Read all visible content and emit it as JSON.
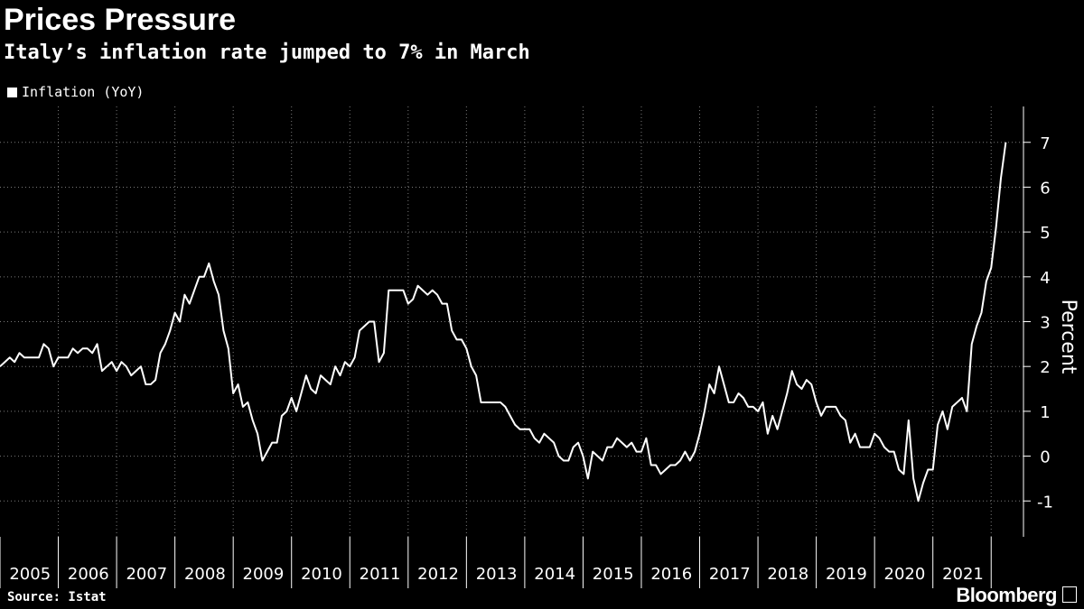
{
  "header": {
    "title": "Prices Pressure",
    "subtitle": "Italy’s inflation rate jumped to 7% in March"
  },
  "footer": {
    "source": "Source: Istat",
    "brand": "Bloomberg"
  },
  "chart_data": {
    "type": "line",
    "ylabel": "Percent",
    "ylim": [
      -1.8,
      7.8
    ],
    "yticks": [
      -1,
      0,
      1,
      2,
      3,
      4,
      5,
      6,
      7
    ],
    "xlim": [
      "2005-01",
      "2022-03"
    ],
    "x_tick_labels": [
      "2005",
      "2006",
      "2007",
      "2008",
      "2009",
      "2010",
      "2011",
      "2012",
      "2013",
      "2014",
      "2015",
      "2016",
      "2017",
      "2018",
      "2019",
      "2020",
      "2021"
    ],
    "grid": true,
    "legend": "top-left",
    "series": [
      {
        "name": "Inflation (YoY)",
        "color": "#ffffff",
        "start": "2005-01",
        "frequency": "monthly",
        "values": [
          2.0,
          2.1,
          2.2,
          2.1,
          2.3,
          2.2,
          2.2,
          2.2,
          2.2,
          2.5,
          2.4,
          2.0,
          2.2,
          2.2,
          2.2,
          2.4,
          2.3,
          2.4,
          2.4,
          2.3,
          2.5,
          1.9,
          2.0,
          2.1,
          1.9,
          2.1,
          2.0,
          1.8,
          1.9,
          2.0,
          1.6,
          1.6,
          1.7,
          2.3,
          2.5,
          2.8,
          3.2,
          3.0,
          3.6,
          3.4,
          3.7,
          4.0,
          4.0,
          4.3,
          3.9,
          3.6,
          2.8,
          2.4,
          1.4,
          1.6,
          1.1,
          1.2,
          0.8,
          0.5,
          -0.1,
          0.1,
          0.3,
          0.3,
          0.9,
          1.0,
          1.3,
          1.0,
          1.4,
          1.8,
          1.5,
          1.4,
          1.8,
          1.7,
          1.6,
          2.0,
          1.8,
          2.1,
          2.0,
          2.2,
          2.8,
          2.9,
          3.0,
          3.0,
          2.1,
          2.3,
          3.7,
          3.7,
          3.7,
          3.7,
          3.4,
          3.5,
          3.8,
          3.7,
          3.6,
          3.7,
          3.6,
          3.4,
          3.4,
          2.8,
          2.6,
          2.6,
          2.4,
          2.0,
          1.8,
          1.2,
          1.2,
          1.2,
          1.2,
          1.2,
          1.1,
          0.9,
          0.7,
          0.6,
          0.6,
          0.6,
          0.4,
          0.3,
          0.5,
          0.4,
          0.3,
          0.0,
          -0.1,
          -0.1,
          0.2,
          0.3,
          0.0,
          -0.5,
          0.1,
          0.0,
          -0.1,
          0.2,
          0.2,
          0.4,
          0.3,
          0.2,
          0.3,
          0.1,
          0.1,
          0.4,
          -0.2,
          -0.2,
          -0.4,
          -0.3,
          -0.2,
          -0.2,
          -0.1,
          0.1,
          -0.1,
          0.1,
          0.5,
          1.0,
          1.6,
          1.4,
          2.0,
          1.6,
          1.2,
          1.2,
          1.4,
          1.3,
          1.1,
          1.1,
          1.0,
          1.2,
          0.5,
          0.9,
          0.6,
          1.0,
          1.4,
          1.9,
          1.6,
          1.5,
          1.7,
          1.6,
          1.2,
          0.9,
          1.1,
          1.1,
          1.1,
          0.9,
          0.8,
          0.3,
          0.5,
          0.2,
          0.2,
          0.2,
          0.5,
          0.4,
          0.2,
          0.1,
          0.1,
          -0.3,
          -0.4,
          0.8,
          -0.5,
          -1.0,
          -0.6,
          -0.3,
          -0.3,
          0.7,
          1.0,
          0.6,
          1.1,
          1.2,
          1.3,
          1.0,
          2.5,
          2.9,
          3.2,
          3.9,
          4.2,
          5.1,
          6.2,
          7.0
        ]
      }
    ]
  }
}
